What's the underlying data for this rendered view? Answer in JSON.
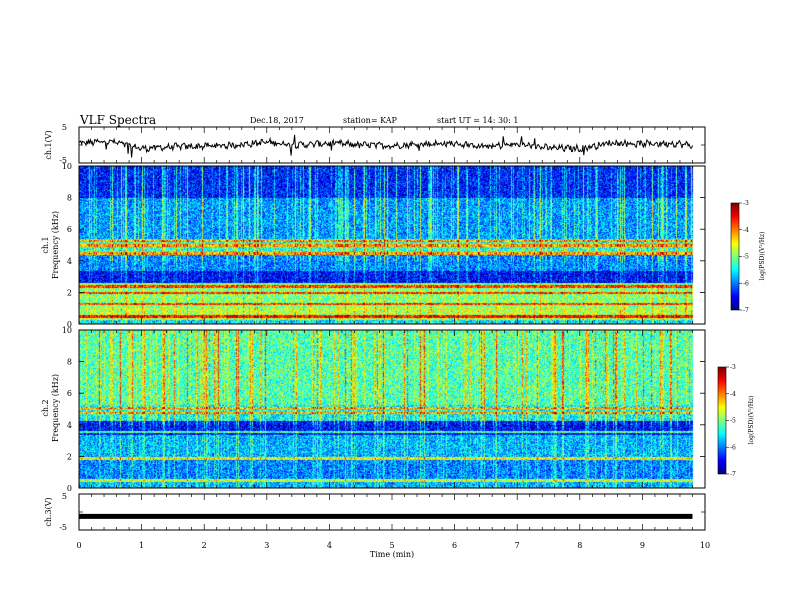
{
  "header": {
    "title": "VLF Spectra",
    "date": "Dec.18, 2017",
    "station": "station= KAP",
    "start": "start  UT =   14: 30: 1"
  },
  "chart_data": [
    {
      "type": "line",
      "panel": "waveform-ch1",
      "ylabel": "ch.1(V)",
      "ylim": [
        -5,
        5
      ],
      "yticks": [
        5,
        -5
      ],
      "x": [
        0,
        0.5,
        1,
        1.5,
        2,
        2.5,
        3,
        3.5,
        4,
        4.5,
        5,
        5.5,
        6,
        6.5,
        7,
        7.5,
        8,
        8.5,
        9,
        9.5,
        9.8
      ],
      "y": [
        0.5,
        1.0,
        -1.0,
        -0.5,
        -0.3,
        0,
        0.8,
        0,
        0.5,
        0,
        -0.2,
        0.3,
        0.4,
        -0.5,
        0.2,
        -0.8,
        -1.0,
        0.6,
        0.3,
        0.5,
        -0.2
      ]
    },
    {
      "type": "heatmap",
      "panel": "spectrogram-ch1",
      "channel_label": "ch.1",
      "ylabel": "Frequency  (kHz)",
      "ylim": [
        0,
        10
      ],
      "yticks": [
        "0",
        "2",
        "4",
        "6",
        "8",
        "10"
      ],
      "colorbar": {
        "label": "log(PSD)(V²/Hz)",
        "ticks": [
          "-3",
          "-4",
          "-5",
          "-6",
          "-7"
        ],
        "range": [
          -7,
          -3
        ]
      },
      "freq_bands_khz": [
        {
          "from": 0,
          "to": 0.3,
          "level": -5.6
        },
        {
          "from": 0.3,
          "to": 1.1,
          "level": -4.8
        },
        {
          "from": 1.1,
          "to": 2.6,
          "level": -5.0
        },
        {
          "from": 2.6,
          "to": 3.4,
          "level": -6.5
        },
        {
          "from": 3.4,
          "to": 4.4,
          "level": -6.0
        },
        {
          "from": 4.4,
          "to": 5.4,
          "level": -5.4
        },
        {
          "from": 5.4,
          "to": 8.0,
          "level": -5.9
        },
        {
          "from": 8.0,
          "to": 10,
          "level": -6.4
        }
      ],
      "lines_khz": [
        0.5,
        1.3,
        2.0,
        2.4,
        4.5,
        5.0,
        5.3
      ]
    },
    {
      "type": "heatmap",
      "panel": "spectrogram-ch2",
      "channel_label": "ch.2",
      "ylabel": "Frequency  (kHz)",
      "ylim": [
        0,
        10
      ],
      "yticks": [
        "0",
        "2",
        "4",
        "6",
        "8",
        "10"
      ],
      "colorbar": {
        "label": "log(PSD)(V²/Hz)",
        "ticks": [
          "-3",
          "-4",
          "-5",
          "-6",
          "-7"
        ],
        "range": [
          -7,
          -3
        ]
      },
      "freq_bands_khz": [
        {
          "from": 0,
          "to": 0.4,
          "level": -5.8
        },
        {
          "from": 0.4,
          "to": 1.8,
          "level": -6.0
        },
        {
          "from": 1.8,
          "to": 3.4,
          "level": -5.8
        },
        {
          "from": 3.4,
          "to": 4.3,
          "level": -6.5
        },
        {
          "from": 4.3,
          "to": 5.3,
          "level": -5.5
        },
        {
          "from": 5.3,
          "to": 10,
          "level": -5.2
        }
      ],
      "lines_khz": [
        0.5,
        1.9,
        3.6,
        4.8,
        5.1
      ]
    },
    {
      "type": "line",
      "panel": "waveform-ch3",
      "ylabel": "ch.3(V)",
      "ylim": [
        -5,
        5
      ],
      "yticks": [
        5,
        -5
      ],
      "x": [
        0,
        9.8
      ],
      "y": [
        -1.2,
        -1.2
      ]
    }
  ],
  "x_axis": {
    "label": "Time  (min)",
    "ticks": [
      "0",
      "1",
      "2",
      "3",
      "4",
      "5",
      "6",
      "7",
      "8",
      "9",
      "10"
    ],
    "xlim": [
      0,
      10
    ]
  }
}
